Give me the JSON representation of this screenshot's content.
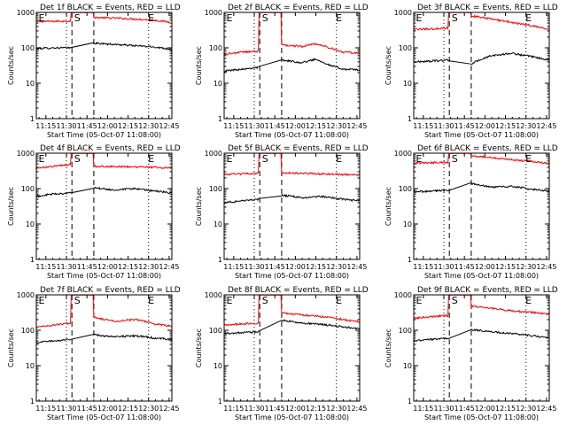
{
  "figure": {
    "xlabel": "Start Time (05-Oct-07 11:08:00)",
    "ylabel": "Counts/sec",
    "colors": {
      "events": "#000000",
      "lld": "#ff0000",
      "background": "#ffffff"
    },
    "markers": {
      "start": "S",
      "end": "E"
    }
  },
  "chart_data": [
    {
      "type": "line",
      "title": "Det 1f BLACK = Events, RED = LLD",
      "xlim": [
        "11:08",
        "12:47"
      ],
      "xticks": [
        "11:15",
        "11:30",
        "11:45",
        "12:00",
        "12:15",
        "12:30",
        "12:45"
      ],
      "ylim": [
        1,
        1000
      ],
      "yscale": "log",
      "yticks": [
        "1",
        "10",
        "100",
        "1000"
      ],
      "dotted_lines": [
        "11:08",
        "11:30",
        "12:30"
      ],
      "dashed_lines": [
        "11:34",
        "11:50"
      ],
      "text_markers": [
        {
          "label": "E",
          "x": "11:09"
        },
        {
          "label": "S",
          "x": "11:35"
        },
        {
          "label": "E",
          "x": "12:29"
        }
      ],
      "series": [
        {
          "name": "LLD",
          "x": [
            "11:08",
            "11:20",
            "11:33",
            "11:50",
            "12:05",
            "12:20",
            "12:35",
            "12:47"
          ],
          "values": [
            550,
            560,
            570,
            720,
            690,
            650,
            600,
            520
          ]
        },
        {
          "name": "Events",
          "x": [
            "11:08",
            "11:20",
            "11:33",
            "11:50",
            "12:05",
            "12:20",
            "12:35",
            "12:47"
          ],
          "values": [
            95,
            100,
            100,
            135,
            125,
            115,
            105,
            90
          ]
        }
      ]
    },
    {
      "type": "line",
      "title": "Det 2f BLACK = Events, RED = LLD",
      "xlim": [
        "11:08",
        "12:47"
      ],
      "xticks": [
        "11:15",
        "11:30",
        "11:45",
        "12:00",
        "12:15",
        "12:30",
        "12:45"
      ],
      "ylim": [
        1,
        1000
      ],
      "yscale": "log",
      "yticks": [
        "1",
        "10",
        "100",
        "1000"
      ],
      "dotted_lines": [
        "11:08",
        "11:30",
        "12:30"
      ],
      "dashed_lines": [
        "11:34",
        "11:50"
      ],
      "text_markers": [
        {
          "label": "E",
          "x": "11:09"
        },
        {
          "label": "S",
          "x": "11:35"
        },
        {
          "label": "E",
          "x": "12:29"
        }
      ],
      "series": [
        {
          "name": "LLD",
          "x": [
            "11:08",
            "11:20",
            "11:33",
            "11:50",
            "12:05",
            "12:15",
            "12:25",
            "12:35",
            "12:47"
          ],
          "values": [
            65,
            75,
            80,
            120,
            110,
            130,
            100,
            75,
            70
          ]
        },
        {
          "name": "Events",
          "x": [
            "11:08",
            "11:20",
            "11:33",
            "11:50",
            "12:05",
            "12:15",
            "12:25",
            "12:35",
            "12:47"
          ],
          "values": [
            22,
            25,
            28,
            45,
            38,
            48,
            32,
            25,
            24
          ]
        }
      ]
    },
    {
      "type": "line",
      "title": "Det 3f BLACK = Events, RED = LLD",
      "xlim": [
        "11:08",
        "12:47"
      ],
      "xticks": [
        "11:15",
        "11:30",
        "11:45",
        "12:00",
        "12:15",
        "12:30",
        "12:45"
      ],
      "ylim": [
        1,
        1000
      ],
      "yscale": "log",
      "yticks": [
        "1",
        "10",
        "100",
        "1000"
      ],
      "dotted_lines": [
        "11:08",
        "11:30",
        "12:30"
      ],
      "dashed_lines": [
        "11:34",
        "11:50"
      ],
      "text_markers": [
        {
          "label": "E",
          "x": "11:09"
        },
        {
          "label": "S",
          "x": "11:35"
        },
        {
          "label": "E",
          "x": "12:29"
        }
      ],
      "series": [
        {
          "name": "LLD",
          "x": [
            "11:08",
            "11:20",
            "11:33",
            "11:50",
            "12:05",
            "12:20",
            "12:35",
            "12:47"
          ],
          "values": [
            330,
            340,
            360,
            800,
            650,
            520,
            420,
            330
          ]
        },
        {
          "name": "Events",
          "x": [
            "11:08",
            "11:20",
            "11:33",
            "11:50",
            "12:05",
            "12:20",
            "12:35",
            "12:47"
          ],
          "values": [
            40,
            42,
            45,
            35,
            60,
            70,
            55,
            45
          ]
        }
      ]
    },
    {
      "type": "line",
      "title": "Det 4f BLACK = Events, RED = LLD",
      "xlim": [
        "11:08",
        "12:47"
      ],
      "xticks": [
        "11:15",
        "11:30",
        "11:45",
        "12:00",
        "12:15",
        "12:30",
        "12:45"
      ],
      "ylim": [
        1,
        1000
      ],
      "yscale": "log",
      "yticks": [
        "1",
        "10",
        "100",
        "1000"
      ],
      "dotted_lines": [
        "11:08",
        "11:30",
        "12:30"
      ],
      "dashed_lines": [
        "11:34",
        "11:50"
      ],
      "text_markers": [
        {
          "label": "E",
          "x": "11:09"
        },
        {
          "label": "S",
          "x": "11:35"
        },
        {
          "label": "E",
          "x": "12:29"
        }
      ],
      "series": [
        {
          "name": "LLD",
          "x": [
            "11:08",
            "11:20",
            "11:33",
            "11:50",
            "12:05",
            "12:20",
            "12:35",
            "12:47"
          ],
          "values": [
            380,
            420,
            480,
            430,
            420,
            410,
            400,
            380
          ]
        },
        {
          "name": "Events",
          "x": [
            "11:08",
            "11:20",
            "11:33",
            "11:50",
            "12:05",
            "12:20",
            "12:35",
            "12:47"
          ],
          "values": [
            60,
            70,
            75,
            105,
            90,
            100,
            85,
            75
          ]
        }
      ]
    },
    {
      "type": "line",
      "title": "Det 5f BLACK = Events, RED = LLD",
      "xlim": [
        "11:08",
        "12:47"
      ],
      "xticks": [
        "11:15",
        "11:30",
        "11:45",
        "12:00",
        "12:15",
        "12:30",
        "12:45"
      ],
      "ylim": [
        1,
        1000
      ],
      "yscale": "log",
      "yticks": [
        "1",
        "10",
        "100",
        "1000"
      ],
      "dotted_lines": [
        "11:08",
        "11:30",
        "12:30"
      ],
      "dashed_lines": [
        "11:34",
        "11:50"
      ],
      "text_markers": [
        {
          "label": "E",
          "x": "11:09"
        },
        {
          "label": "S",
          "x": "11:35"
        },
        {
          "label": "E",
          "x": "12:29"
        }
      ],
      "series": [
        {
          "name": "LLD",
          "x": [
            "11:08",
            "11:20",
            "11:33",
            "11:50",
            "12:05",
            "12:20",
            "12:35",
            "12:47"
          ],
          "values": [
            250,
            260,
            270,
            280,
            270,
            260,
            250,
            240
          ]
        },
        {
          "name": "Events",
          "x": [
            "11:08",
            "11:20",
            "11:33",
            "11:50",
            "12:05",
            "12:20",
            "12:35",
            "12:47"
          ],
          "values": [
            40,
            45,
            50,
            65,
            55,
            60,
            50,
            45
          ]
        }
      ]
    },
    {
      "type": "line",
      "title": "Det 6f BLACK = Events, RED = LLD",
      "xlim": [
        "11:08",
        "12:47"
      ],
      "xticks": [
        "11:15",
        "11:30",
        "11:45",
        "12:00",
        "12:15",
        "12:30",
        "12:45"
      ],
      "ylim": [
        1,
        1000
      ],
      "yscale": "log",
      "yticks": [
        "1",
        "10",
        "100",
        "1000"
      ],
      "dotted_lines": [
        "11:08",
        "11:30",
        "12:30"
      ],
      "dashed_lines": [
        "11:34",
        "11:50"
      ],
      "text_markers": [
        {
          "label": "E",
          "x": "11:09"
        },
        {
          "label": "S",
          "x": "11:35"
        },
        {
          "label": "E",
          "x": "12:29"
        }
      ],
      "series": [
        {
          "name": "LLD",
          "x": [
            "11:08",
            "11:20",
            "11:33",
            "11:50",
            "12:05",
            "12:20",
            "12:35",
            "12:47"
          ],
          "values": [
            520,
            540,
            560,
            850,
            750,
            650,
            580,
            500
          ]
        },
        {
          "name": "Events",
          "x": [
            "11:08",
            "11:20",
            "11:33",
            "11:50",
            "12:05",
            "12:20",
            "12:35",
            "12:47"
          ],
          "values": [
            80,
            85,
            90,
            140,
            110,
            115,
            95,
            85
          ]
        }
      ]
    },
    {
      "type": "line",
      "title": "Det 7f BLACK = Events, RED = LLD",
      "xlim": [
        "11:08",
        "12:47"
      ],
      "xticks": [
        "11:15",
        "11:30",
        "11:45",
        "12:00",
        "12:15",
        "12:30",
        "12:45"
      ],
      "ylim": [
        1,
        1000
      ],
      "yscale": "log",
      "yticks": [
        "1",
        "10",
        "100",
        "1000"
      ],
      "dotted_lines": [
        "11:08",
        "11:30",
        "12:30"
      ],
      "dashed_lines": [
        "11:34",
        "11:50"
      ],
      "text_markers": [
        {
          "label": "E",
          "x": "11:09"
        },
        {
          "label": "S",
          "x": "11:35"
        },
        {
          "label": "E",
          "x": "12:29"
        }
      ],
      "series": [
        {
          "name": "LLD",
          "x": [
            "11:08",
            "11:20",
            "11:33",
            "11:50",
            "12:05",
            "12:20",
            "12:35",
            "12:47"
          ],
          "values": [
            120,
            140,
            160,
            230,
            180,
            200,
            150,
            130
          ]
        },
        {
          "name": "Events",
          "x": [
            "11:08",
            "11:20",
            "11:33",
            "11:50",
            "12:05",
            "12:20",
            "12:35",
            "12:47"
          ],
          "values": [
            45,
            50,
            55,
            75,
            65,
            70,
            60,
            55
          ]
        }
      ]
    },
    {
      "type": "line",
      "title": "Det 8f BLACK = Events, RED = LLD",
      "xlim": [
        "11:08",
        "12:47"
      ],
      "xticks": [
        "11:15",
        "11:30",
        "11:45",
        "12:00",
        "12:15",
        "12:30",
        "12:45"
      ],
      "ylim": [
        1,
        1000
      ],
      "yscale": "log",
      "yticks": [
        "1",
        "10",
        "100",
        "1000"
      ],
      "dotted_lines": [
        "11:08",
        "11:30",
        "12:30"
      ],
      "dashed_lines": [
        "11:34",
        "11:50"
      ],
      "text_markers": [
        {
          "label": "E",
          "x": "11:09"
        },
        {
          "label": "S",
          "x": "11:35"
        },
        {
          "label": "E",
          "x": "12:29"
        }
      ],
      "series": [
        {
          "name": "LLD",
          "x": [
            "11:08",
            "11:20",
            "11:33",
            "11:50",
            "12:05",
            "12:20",
            "12:35",
            "12:47"
          ],
          "values": [
            140,
            150,
            160,
            310,
            270,
            240,
            200,
            170
          ]
        },
        {
          "name": "Events",
          "x": [
            "11:08",
            "11:20",
            "11:33",
            "11:50",
            "12:05",
            "12:20",
            "12:35",
            "12:47"
          ],
          "values": [
            80,
            85,
            90,
            190,
            160,
            145,
            125,
            110
          ]
        }
      ]
    },
    {
      "type": "line",
      "title": "Det 9f BLACK = Events, RED = LLD",
      "xlim": [
        "11:08",
        "12:47"
      ],
      "xticks": [
        "11:15",
        "11:30",
        "11:45",
        "12:00",
        "12:15",
        "12:30",
        "12:45"
      ],
      "ylim": [
        1,
        1000
      ],
      "yscale": "log",
      "yticks": [
        "1",
        "10",
        "100",
        "1000"
      ],
      "dotted_lines": [
        "11:08",
        "11:30",
        "12:30"
      ],
      "dashed_lines": [
        "11:34",
        "11:50"
      ],
      "text_markers": [
        {
          "label": "E",
          "x": "11:09"
        },
        {
          "label": "S",
          "x": "11:35"
        },
        {
          "label": "E",
          "x": "12:29"
        }
      ],
      "series": [
        {
          "name": "LLD",
          "x": [
            "11:08",
            "11:20",
            "11:33",
            "11:50",
            "12:05",
            "12:20",
            "12:35",
            "12:47"
          ],
          "values": [
            220,
            240,
            260,
            480,
            420,
            350,
            320,
            280
          ]
        },
        {
          "name": "Events",
          "x": [
            "11:08",
            "11:20",
            "11:33",
            "11:50",
            "12:05",
            "12:20",
            "12:35",
            "12:47"
          ],
          "values": [
            50,
            55,
            60,
            105,
            90,
            80,
            70,
            60
          ]
        }
      ]
    }
  ]
}
